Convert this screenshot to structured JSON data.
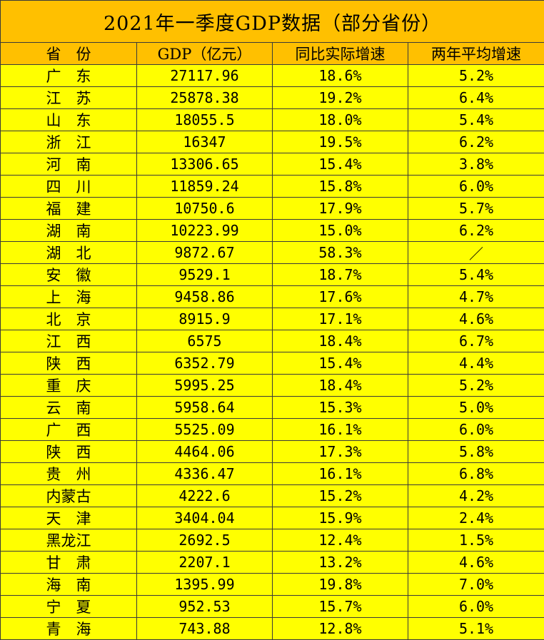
{
  "title": "2021年一季度GDP数据（部分省份）",
  "columns": [
    "省　份",
    "GDP（亿元）",
    "同比实际增速",
    "两年平均增速"
  ],
  "rows": [
    {
      "province": "广　东",
      "gdp": "27117.96",
      "yoy": "18.6%",
      "avg2y": "5.2%"
    },
    {
      "province": "江　苏",
      "gdp": "25878.38",
      "yoy": "19.2%",
      "avg2y": "6.4%"
    },
    {
      "province": "山　东",
      "gdp": "18055.5",
      "yoy": "18.0%",
      "avg2y": "5.4%"
    },
    {
      "province": "浙　江",
      "gdp": "16347",
      "yoy": "19.5%",
      "avg2y": "6.2%"
    },
    {
      "province": "河　南",
      "gdp": "13306.65",
      "yoy": "15.4%",
      "avg2y": "3.8%"
    },
    {
      "province": "四　川",
      "gdp": "11859.24",
      "yoy": "15.8%",
      "avg2y": "6.0%"
    },
    {
      "province": "福　建",
      "gdp": "10750.6",
      "yoy": "17.9%",
      "avg2y": "5.7%"
    },
    {
      "province": "湖　南",
      "gdp": "10223.99",
      "yoy": "15.0%",
      "avg2y": "6.2%"
    },
    {
      "province": "湖　北",
      "gdp": "9872.67",
      "yoy": "58.3%",
      "avg2y": "／"
    },
    {
      "province": "安　徽",
      "gdp": "9529.1",
      "yoy": "18.7%",
      "avg2y": "5.4%"
    },
    {
      "province": "上　海",
      "gdp": "9458.86",
      "yoy": "17.6%",
      "avg2y": "4.7%"
    },
    {
      "province": "北　京",
      "gdp": "8915.9",
      "yoy": "17.1%",
      "avg2y": "4.6%"
    },
    {
      "province": "江　西",
      "gdp": "6575",
      "yoy": "18.4%",
      "avg2y": "6.7%"
    },
    {
      "province": "陕　西",
      "gdp": "6352.79",
      "yoy": "15.4%",
      "avg2y": "4.4%"
    },
    {
      "province": "重　庆",
      "gdp": "5995.25",
      "yoy": "18.4%",
      "avg2y": "5.2%"
    },
    {
      "province": "云　南",
      "gdp": "5958.64",
      "yoy": "15.3%",
      "avg2y": "5.0%"
    },
    {
      "province": "广　西",
      "gdp": "5525.09",
      "yoy": "16.1%",
      "avg2y": "6.0%"
    },
    {
      "province": "陕　西",
      "gdp": "4464.06",
      "yoy": "17.3%",
      "avg2y": "5.8%"
    },
    {
      "province": "贵　州",
      "gdp": "4336.47",
      "yoy": "16.1%",
      "avg2y": "6.8%"
    },
    {
      "province": "内蒙古",
      "gdp": "4222.6",
      "yoy": "15.2%",
      "avg2y": "4.2%"
    },
    {
      "province": "天　津",
      "gdp": "3404.04",
      "yoy": "15.9%",
      "avg2y": "2.4%"
    },
    {
      "province": "黑龙江",
      "gdp": "2692.5",
      "yoy": "12.4%",
      "avg2y": "1.5%"
    },
    {
      "province": "甘　肃",
      "gdp": "2207.1",
      "yoy": "13.2%",
      "avg2y": "4.6%"
    },
    {
      "province": "海　南",
      "gdp": "1395.99",
      "yoy": "19.8%",
      "avg2y": "7.0%"
    },
    {
      "province": "宁　夏",
      "gdp": "952.53",
      "yoy": "15.7%",
      "avg2y": "6.0%"
    },
    {
      "province": "青　海",
      "gdp": "743.88",
      "yoy": "12.8%",
      "avg2y": "5.1%"
    }
  ],
  "colors": {
    "header_bg": "#ffc000",
    "row_bg": "#ffff00",
    "border": "#3a3a3a"
  },
  "chart_data": {
    "type": "table",
    "title": "2021年一季度GDP数据（部分省份）",
    "columns": [
      "省　份",
      "GDP（亿元）",
      "同比实际增速",
      "两年平均增速"
    ],
    "rows": [
      [
        "广　东",
        27117.96,
        18.6,
        5.2
      ],
      [
        "江　苏",
        25878.38,
        19.2,
        6.4
      ],
      [
        "山　东",
        18055.5,
        18.0,
        5.4
      ],
      [
        "浙　江",
        16347,
        19.5,
        6.2
      ],
      [
        "河　南",
        13306.65,
        15.4,
        3.8
      ],
      [
        "四　川",
        11859.24,
        15.8,
        6.0
      ],
      [
        "福　建",
        10750.6,
        17.9,
        5.7
      ],
      [
        "湖　南",
        10223.99,
        15.0,
        6.2
      ],
      [
        "湖　北",
        9872.67,
        58.3,
        null
      ],
      [
        "安　徽",
        9529.1,
        18.7,
        5.4
      ],
      [
        "上　海",
        9458.86,
        17.6,
        4.7
      ],
      [
        "北　京",
        8915.9,
        17.1,
        4.6
      ],
      [
        "江　西",
        6575,
        18.4,
        6.7
      ],
      [
        "陕　西",
        6352.79,
        15.4,
        4.4
      ],
      [
        "重　庆",
        5995.25,
        18.4,
        5.2
      ],
      [
        "云　南",
        5958.64,
        15.3,
        5.0
      ],
      [
        "广　西",
        5525.09,
        16.1,
        6.0
      ],
      [
        "陕　西",
        4464.06,
        17.3,
        5.8
      ],
      [
        "贵　州",
        4336.47,
        16.1,
        6.8
      ],
      [
        "内蒙古",
        4222.6,
        15.2,
        4.2
      ],
      [
        "天　津",
        3404.04,
        15.9,
        2.4
      ],
      [
        "黑龙江",
        2692.5,
        12.4,
        1.5
      ],
      [
        "甘　肃",
        2207.1,
        13.2,
        4.6
      ],
      [
        "海　南",
        1395.99,
        19.8,
        7.0
      ],
      [
        "宁　夏",
        952.53,
        15.7,
        6.0
      ],
      [
        "青　海",
        743.88,
        12.8,
        5.1
      ]
    ]
  }
}
